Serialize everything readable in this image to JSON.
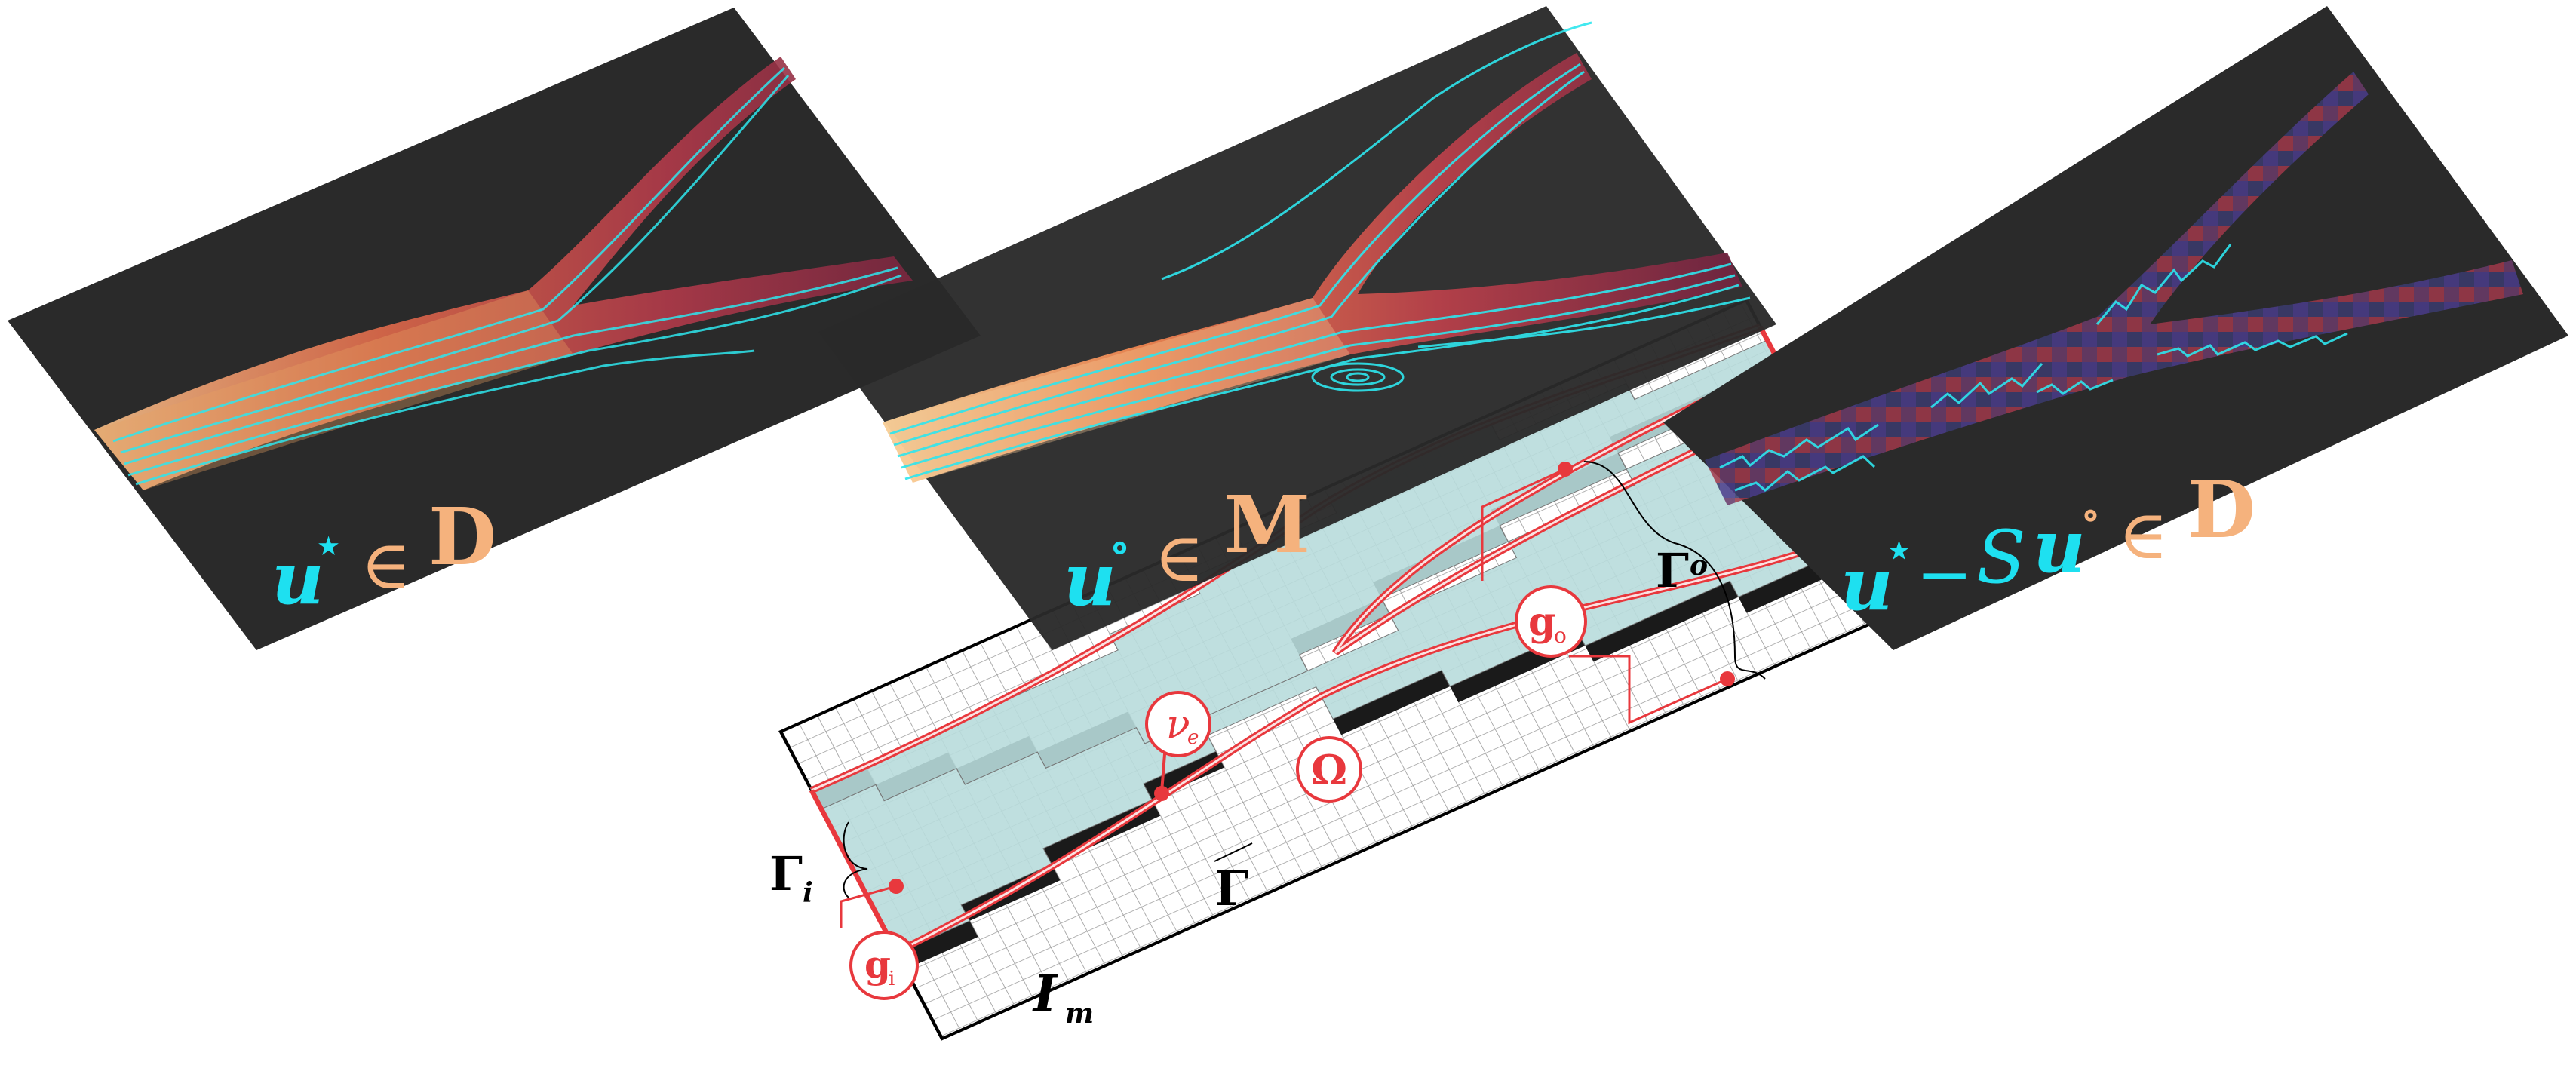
{
  "panels": {
    "left": {
      "symbol": "u",
      "superscript": "⋆",
      "relation": "∈",
      "space": "D"
    },
    "middle": {
      "symbol": "u",
      "superscript": "∘",
      "relation": "∈",
      "space": "M"
    },
    "right": {
      "symbol": "u",
      "superscript": "⋆",
      "operator": "−",
      "smoother": "S",
      "symbol2": "u",
      "superscript2": "∘",
      "relation": "∈",
      "space": "D"
    }
  },
  "mesh": {
    "image_label": "I",
    "image_subscript": "m",
    "domain_label": "Ω",
    "boundary_label": "Γ",
    "inlet_label": "Γ",
    "inlet_subscript": "i",
    "outlet_label": "Γ",
    "outlet_subscript": "o",
    "viscosity_label": "ν",
    "viscosity_subscript": "e",
    "inlet_bc_label": "g",
    "inlet_bc_subscript": "i",
    "outlet_bc_label": "g",
    "outlet_bc_subscript": "o"
  },
  "colors": {
    "panel_background": "#2a2a2a",
    "streamline": "#2ee6ee",
    "label_cyan": "#1ee0f0",
    "label_orange": "#f5b27d",
    "fluid_fill": "#b8dcdc",
    "boundary_red": "#e8383d",
    "wall_black": "#1a1a1a"
  }
}
